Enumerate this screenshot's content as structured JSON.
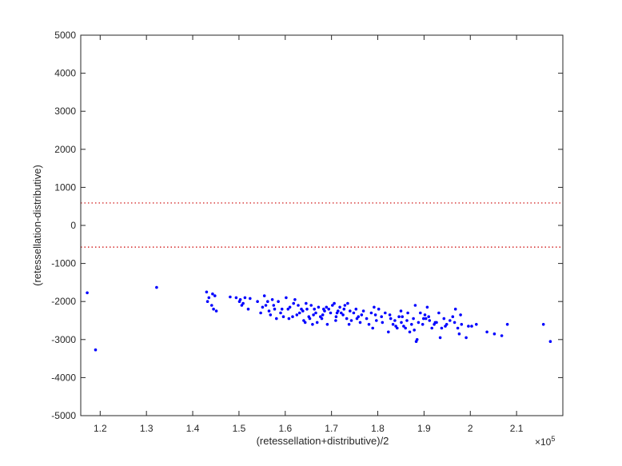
{
  "chart_data": {
    "type": "scatter",
    "title": "",
    "xlabel": "(retessellation+distributive)/2",
    "ylabel": "(retessellation-distributive)",
    "x_exponent_label": "×10",
    "x_exponent_power": "5",
    "xlim": [
      115800,
      220000
    ],
    "ylim": [
      -5000,
      5000
    ],
    "x_tick_values": [
      120000,
      130000,
      140000,
      150000,
      160000,
      170000,
      180000,
      190000,
      200000,
      210000
    ],
    "x_tick_labels": [
      "1.2",
      "1.3",
      "1.4",
      "1.5",
      "1.6",
      "1.7",
      "1.8",
      "1.9",
      "2",
      "2.1"
    ],
    "y_tick_values": [
      -5000,
      -4000,
      -3000,
      -2000,
      -1000,
      0,
      1000,
      2000,
      3000,
      4000,
      5000
    ],
    "y_tick_labels": [
      "-5000",
      "-4000",
      "-3000",
      "-2000",
      "-1000",
      "0",
      "1000",
      "2000",
      "3000",
      "4000",
      "5000"
    ],
    "grid": false,
    "reference_lines": [
      {
        "y": 590,
        "style": "dotted",
        "color": "#cc0000"
      },
      {
        "y": -570,
        "style": "dotted",
        "color": "#cc0000"
      }
    ],
    "marker_color": "#0000ff",
    "series": [
      {
        "points": [
          [
            117200,
            -1770
          ],
          [
            119000,
            -3270
          ],
          [
            132200,
            -1630
          ],
          [
            143000,
            -1750
          ],
          [
            143200,
            -2000
          ],
          [
            143500,
            -1900
          ],
          [
            144100,
            -2100
          ],
          [
            144300,
            -1800
          ],
          [
            144500,
            -2200
          ],
          [
            144800,
            -1850
          ],
          [
            145100,
            -2250
          ],
          [
            148100,
            -1880
          ],
          [
            149400,
            -1900
          ],
          [
            150100,
            -2000
          ],
          [
            150300,
            -1950
          ],
          [
            150900,
            -2050
          ],
          [
            151300,
            -1900
          ],
          [
            152000,
            -2200
          ],
          [
            152400,
            -1920
          ],
          [
            154000,
            -2000
          ],
          [
            154700,
            -2300
          ],
          [
            155100,
            -2150
          ],
          [
            155500,
            -1850
          ],
          [
            155800,
            -2100
          ],
          [
            156200,
            -2000
          ],
          [
            156800,
            -2350
          ],
          [
            157200,
            -1950
          ],
          [
            157700,
            -2200
          ],
          [
            158100,
            -2450
          ],
          [
            158500,
            -2000
          ],
          [
            159000,
            -2300
          ],
          [
            159600,
            -2400
          ],
          [
            160200,
            -1900
          ],
          [
            160600,
            -2200
          ],
          [
            161000,
            -2150
          ],
          [
            161600,
            -2400
          ],
          [
            161800,
            -2050
          ],
          [
            162100,
            -1950
          ],
          [
            162500,
            -2350
          ],
          [
            163100,
            -2300
          ],
          [
            163500,
            -2200
          ],
          [
            164000,
            -2500
          ],
          [
            164300,
            -2550
          ],
          [
            164700,
            -2200
          ],
          [
            165100,
            -2400
          ],
          [
            165600,
            -2100
          ],
          [
            165900,
            -2600
          ],
          [
            166300,
            -2200
          ],
          [
            166600,
            -2300
          ],
          [
            166900,
            -2550
          ],
          [
            167200,
            -2150
          ],
          [
            167600,
            -2400
          ],
          [
            168100,
            -2350
          ],
          [
            168500,
            -2250
          ],
          [
            168900,
            -2150
          ],
          [
            169400,
            -2200
          ],
          [
            169800,
            -2300
          ],
          [
            170200,
            -2100
          ],
          [
            170600,
            -2050
          ],
          [
            171000,
            -2400
          ],
          [
            171400,
            -2250
          ],
          [
            171800,
            -2150
          ],
          [
            172100,
            -2300
          ],
          [
            172500,
            -2350
          ],
          [
            172900,
            -2100
          ],
          [
            173300,
            -2450
          ],
          [
            173800,
            -2600
          ],
          [
            174300,
            -2500
          ],
          [
            174800,
            -2300
          ],
          [
            175300,
            -2200
          ],
          [
            175800,
            -2400
          ],
          [
            176200,
            -2550
          ],
          [
            176900,
            -2250
          ],
          [
            177600,
            -2450
          ],
          [
            178100,
            -2600
          ],
          [
            178600,
            -2300
          ],
          [
            179200,
            -2150
          ],
          [
            179700,
            -2500
          ],
          [
            180200,
            -2200
          ],
          [
            180800,
            -2400
          ],
          [
            181600,
            -2300
          ],
          [
            182300,
            -2800
          ],
          [
            182800,
            -2450
          ],
          [
            183300,
            -2600
          ],
          [
            183700,
            -2500
          ],
          [
            184200,
            -2700
          ],
          [
            184600,
            -2400
          ],
          [
            185100,
            -2550
          ],
          [
            185600,
            -2650
          ],
          [
            186000,
            -2700
          ],
          [
            186500,
            -2300
          ],
          [
            186900,
            -2800
          ],
          [
            187300,
            -2600
          ],
          [
            187700,
            -2450
          ],
          [
            188100,
            -2100
          ],
          [
            188500,
            -3000
          ],
          [
            188800,
            -2550
          ],
          [
            189200,
            -2300
          ],
          [
            189700,
            -2600
          ],
          [
            190200,
            -2350
          ],
          [
            190700,
            -2150
          ],
          [
            191200,
            -2500
          ],
          [
            191700,
            -2700
          ],
          [
            192200,
            -2600
          ],
          [
            192700,
            -2550
          ],
          [
            193200,
            -2300
          ],
          [
            193500,
            -2950
          ],
          [
            193800,
            -2700
          ],
          [
            194300,
            -2450
          ],
          [
            194900,
            -2600
          ],
          [
            195600,
            -2500
          ],
          [
            196200,
            -2400
          ],
          [
            196800,
            -2200
          ],
          [
            197300,
            -2700
          ],
          [
            197600,
            -2850
          ],
          [
            198100,
            -2600
          ],
          [
            199100,
            -2950
          ],
          [
            200300,
            -2650
          ],
          [
            201300,
            -2600
          ],
          [
            203600,
            -2800
          ],
          [
            205200,
            -2850
          ],
          [
            206800,
            -2900
          ],
          [
            208000,
            -2600
          ],
          [
            215800,
            -2600
          ],
          [
            217300,
            -3050
          ],
          [
            185000,
            -2250
          ],
          [
            186300,
            -2500
          ],
          [
            190400,
            -2450
          ],
          [
            178900,
            -2700
          ],
          [
            174000,
            -2250
          ],
          [
            169100,
            -2600
          ],
          [
            160800,
            -2450
          ],
          [
            157500,
            -2100
          ],
          [
            166100,
            -2350
          ],
          [
            171200,
            -2300
          ],
          [
            176500,
            -2350
          ],
          [
            181000,
            -2550
          ],
          [
            183900,
            -2650
          ],
          [
            187900,
            -2750
          ],
          [
            191000,
            -2400
          ],
          [
            194600,
            -2650
          ],
          [
            197900,
            -2350
          ],
          [
            188300,
            -3050
          ],
          [
            172700,
            -2200
          ],
          [
            167900,
            -2450
          ],
          [
            163800,
            -2250
          ],
          [
            156500,
            -2250
          ],
          [
            150600,
            -2100
          ],
          [
            159300,
            -2200
          ],
          [
            162800,
            -2100
          ],
          [
            165300,
            -2450
          ],
          [
            170900,
            -2500
          ],
          [
            175500,
            -2450
          ],
          [
            179500,
            -2350
          ],
          [
            182600,
            -2350
          ],
          [
            185300,
            -2400
          ],
          [
            189900,
            -2450
          ],
          [
            192400,
            -2550
          ],
          [
            196600,
            -2550
          ],
          [
            199600,
            -2650
          ],
          [
            173500,
            -2050
          ],
          [
            168300,
            -2200
          ],
          [
            164500,
            -2050
          ]
        ]
      }
    ]
  }
}
